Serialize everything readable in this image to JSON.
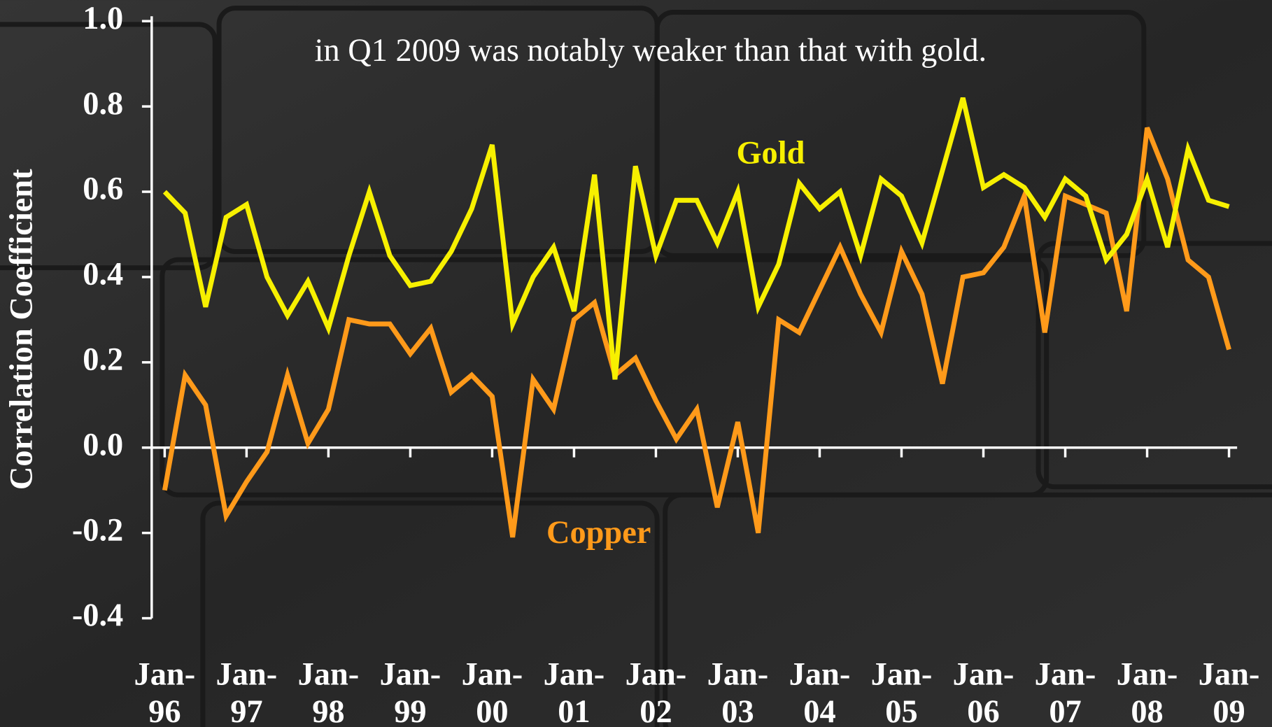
{
  "chart_data": {
    "type": "line",
    "subtitle": "in Q1 2009 was notably weaker than that with gold.",
    "y_label": "Correlation Coefficient",
    "annotations": [
      "Gold",
      "Copper"
    ],
    "categories": [
      "Jan-96",
      null,
      null,
      null,
      "Jan-97",
      null,
      null,
      null,
      "Jan-98",
      null,
      null,
      null,
      "Jan-99",
      null,
      null,
      null,
      "Jan-00",
      null,
      null,
      null,
      "Jan-01",
      null,
      null,
      null,
      "Jan-02",
      null,
      null,
      null,
      "Jan-03",
      null,
      null,
      null,
      "Jan-04",
      null,
      null,
      null,
      "Jan-05",
      null,
      null,
      null,
      "Jan-06",
      null,
      null,
      null,
      "Jan-07",
      null,
      null,
      null,
      "Jan-08",
      null,
      null,
      null,
      "Jan-09"
    ],
    "series": [
      {
        "name": "Gold",
        "color": "#f7f000",
        "values": [
          0.6,
          0.55,
          0.33,
          0.54,
          0.57,
          0.4,
          0.31,
          0.39,
          0.28,
          0.45,
          0.6,
          0.45,
          0.38,
          0.39,
          0.46,
          0.56,
          0.71,
          0.29,
          0.4,
          0.47,
          0.32,
          0.64,
          0.16,
          0.66,
          0.45,
          0.58,
          0.58,
          0.48,
          0.6,
          0.33,
          0.43,
          0.62,
          0.56,
          0.6,
          0.45,
          0.63,
          0.59,
          0.48,
          0.65,
          0.82,
          0.61,
          0.64,
          0.61,
          0.54,
          0.63,
          0.59,
          0.44,
          0.5,
          0.63,
          0.47,
          0.7,
          0.58,
          0.565
        ]
      },
      {
        "name": "Copper",
        "color": "#ff9a1a",
        "values": [
          -0.1,
          0.17,
          0.1,
          -0.16,
          -0.08,
          -0.01,
          0.17,
          0.01,
          0.09,
          0.3,
          0.29,
          0.29,
          0.22,
          0.28,
          0.13,
          0.17,
          0.12,
          -0.21,
          0.16,
          0.09,
          0.3,
          0.34,
          0.17,
          0.21,
          0.11,
          0.02,
          0.09,
          -0.14,
          0.06,
          -0.2,
          0.3,
          0.27,
          0.37,
          0.47,
          0.36,
          0.27,
          0.46,
          0.36,
          0.15,
          0.4,
          0.41,
          0.47,
          0.59,
          0.27,
          0.59,
          0.57,
          0.55,
          0.32,
          0.75,
          0.63,
          0.44,
          0.4,
          0.23
        ]
      }
    ],
    "ylim": [
      -0.4,
      1.0
    ],
    "yticks": [
      -0.4,
      -0.2,
      {
        "value": 0,
        "label": "0.0"
      },
      0.2,
      0.4,
      0.6,
      0.8,
      {
        "value": 1,
        "label": "1.0"
      }
    ]
  }
}
